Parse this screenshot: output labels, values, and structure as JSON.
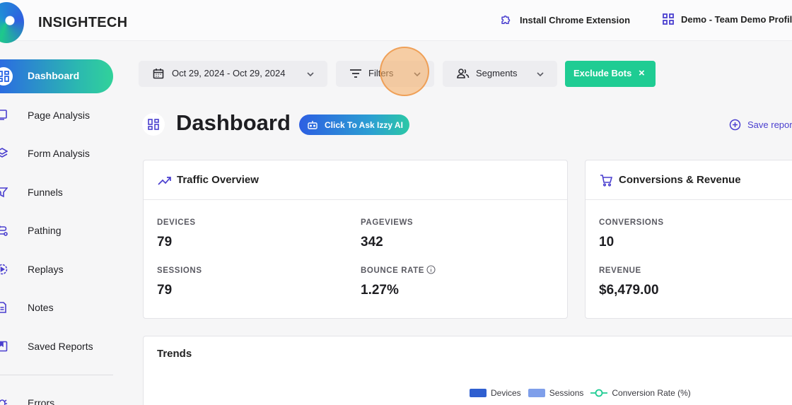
{
  "app": {
    "name": "INSIGHTECH"
  },
  "topbar": {
    "extension_label": "Install Chrome Extension",
    "profile_label": "Demo - Team Demo Profile"
  },
  "sidebar": {
    "items": [
      {
        "label": "Dashboard",
        "icon": "dashboard-icon",
        "active": true
      },
      {
        "label": "Page Analysis",
        "icon": "page-analysis-icon"
      },
      {
        "label": "Form Analysis",
        "icon": "form-analysis-icon"
      },
      {
        "label": "Funnels",
        "icon": "funnel-icon"
      },
      {
        "label": "Pathing",
        "icon": "pathing-icon"
      },
      {
        "label": "Replays",
        "icon": "replay-icon"
      },
      {
        "label": "Notes",
        "icon": "notes-icon"
      },
      {
        "label": "Saved Reports",
        "icon": "saved-reports-icon"
      },
      {
        "label": "Errors",
        "icon": "bug-icon"
      }
    ]
  },
  "filters": {
    "date_range": "Oct 29, 2024 - Oct 29, 2024",
    "filters_label": "Filters",
    "segments_label": "Segments",
    "exclude_bots_label": "Exclude Bots",
    "exclude_close": "×"
  },
  "header": {
    "title": "Dashboard",
    "ask_ai_label": "Click To Ask Izzy AI",
    "save_report_label": "Save report"
  },
  "traffic_overview": {
    "title": "Traffic Overview",
    "metrics": [
      {
        "label": "DEVICES",
        "value": "79"
      },
      {
        "label": "PAGEVIEWS",
        "value": "342"
      },
      {
        "label": "SESSIONS",
        "value": "79"
      },
      {
        "label": "BOUNCE RATE",
        "value": "1.27%"
      }
    ]
  },
  "conversions": {
    "title": "Conversions & Revenue",
    "metrics": [
      {
        "label": "CONVERSIONS",
        "value": "10"
      },
      {
        "label": "REVENUE",
        "value": "$6,479.00"
      }
    ]
  },
  "trends": {
    "title": "Trends",
    "legend": [
      {
        "name": "Devices",
        "color": "#2f5fd0"
      },
      {
        "name": "Sessions",
        "color": "#7f9fea"
      },
      {
        "name": "Conversion Rate (%)",
        "color": "#1fcc93"
      }
    ]
  },
  "colors": {
    "accent": "#4a3fcf",
    "success": "#1fcc93",
    "primary_blue": "#2b64e6"
  }
}
